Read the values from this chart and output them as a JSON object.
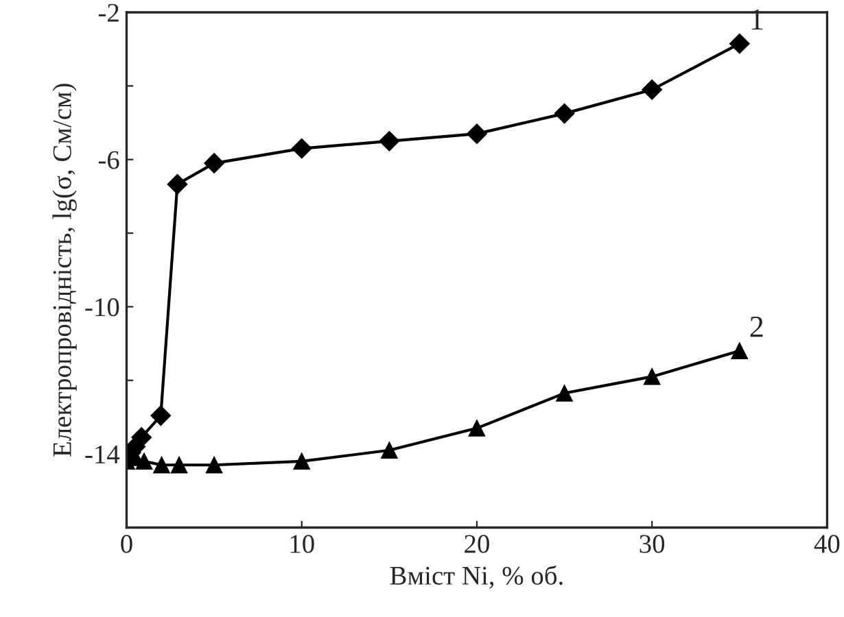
{
  "chart_data": {
    "type": "line",
    "xlabel": "Вміст Ni, % об.",
    "ylabel": "Електропровідність, lg(σ, См/см)",
    "xlim": [
      0,
      40
    ],
    "xticks": [
      0,
      10,
      20,
      30,
      40
    ],
    "ylim": [
      -16,
      -2
    ],
    "yticks": [
      -2,
      {
        "value": -4,
        "label": null
      },
      -6,
      {
        "value": -8,
        "label": null
      },
      -10,
      {
        "value": -12,
        "label": null
      },
      -14,
      {
        "value": -16,
        "label": null
      }
    ],
    "grid": false,
    "line_style": "solid",
    "series": [
      {
        "color": "#000000",
        "marker": "diamond",
        "x": [
          0,
          0.25,
          0.5,
          0.85,
          1.95,
          2.9,
          5,
          10,
          15,
          20,
          25,
          30,
          35
        ],
        "values": [
          -14.15,
          -13.96,
          -13.8,
          -13.55,
          -12.96,
          -6.67,
          -6.1,
          -5.7,
          -5.5,
          -5.3,
          -4.75,
          -4.1,
          -2.85
        ]
      },
      {
        "color": "#000000",
        "marker": "triangle",
        "x": [
          0,
          0.5,
          1,
          2,
          3,
          5,
          10,
          15,
          20,
          25,
          30,
          35
        ],
        "values": [
          -14.2,
          -14.1,
          -14.2,
          -14.3,
          -14.3,
          -14.3,
          -14.2,
          -13.9,
          -13.3,
          -12.35,
          -11.9,
          -11.2
        ]
      }
    ],
    "annotations": [
      {
        "text": "1",
        "x": 35,
        "y": -2.85
      },
      {
        "text": "2",
        "x": 35,
        "y": -11.2
      }
    ]
  }
}
